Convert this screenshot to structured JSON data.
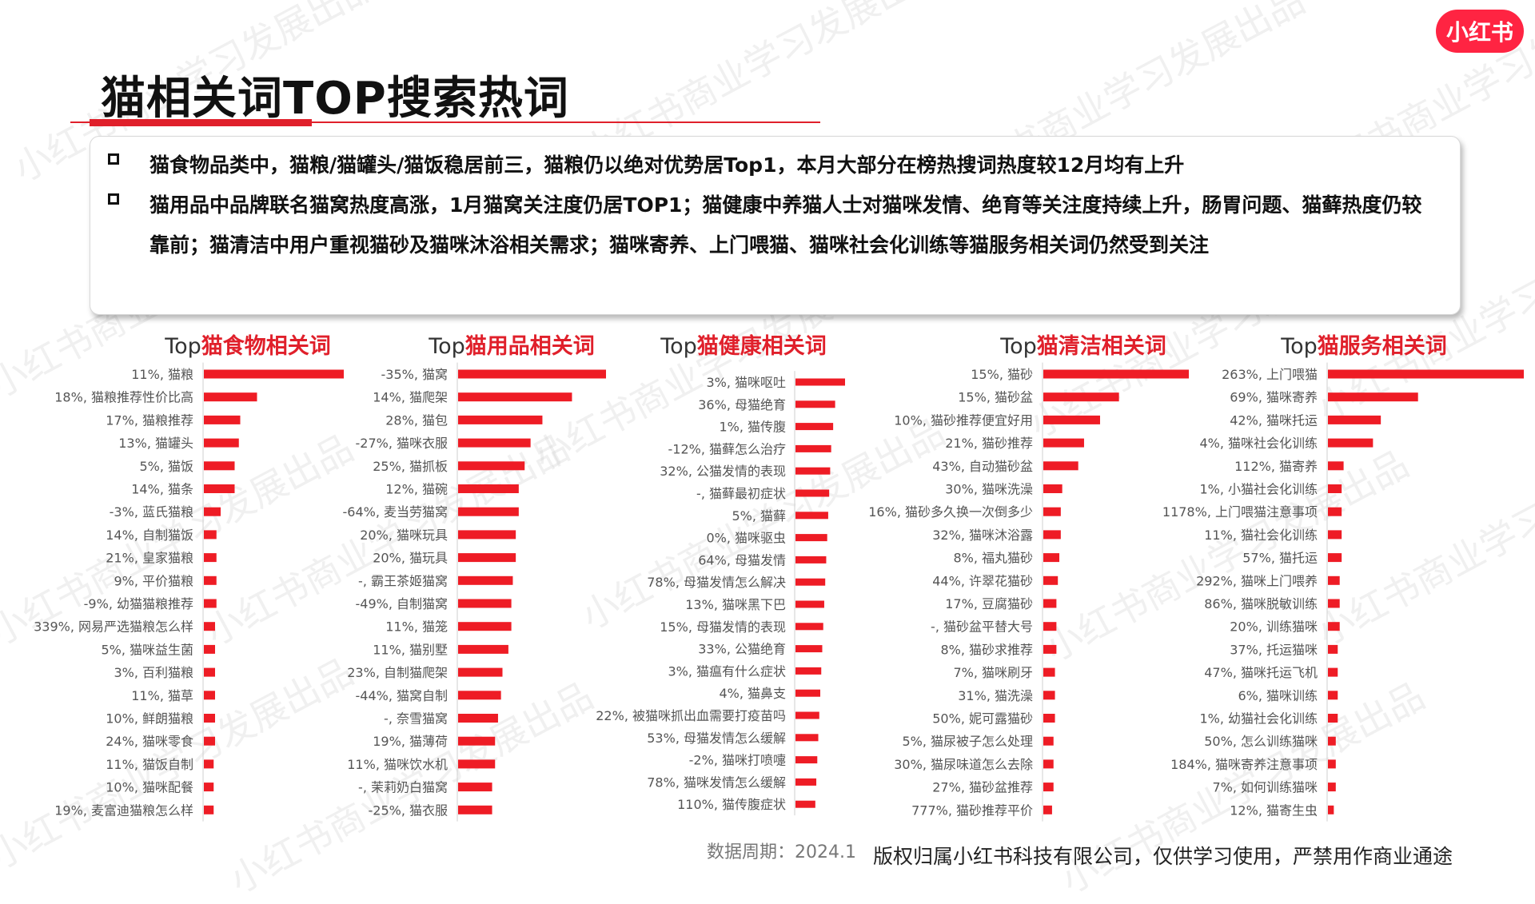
{
  "brand": {
    "logo_text": "小红书",
    "color": "#ff2442"
  },
  "watermark": "小红书商业学习发展出品",
  "page_title": "猫相关词TOP搜索热词",
  "summary": [
    "猫食物品类中，猫粮/猫罐头/猫饭稳居前三，猫粮仍以绝对优势居Top1，本月大部分在榜热搜词热度较12月均有上升",
    "猫用品中品牌联名猫窝热度高涨，1月猫窝关注度仍居TOP1；猫健康中养猫人士对猫咪发情、绝育等关注度持续上升，肠胃问题、猫藓热度仍较靠前；猫清洁中用户重视猫砂及猫咪沐浴相关需求；猫咪寄养、上门喂猫、猫咪社会化训练等猫服务相关词仍然受到关注"
  ],
  "footer": {
    "period": "数据周期：2024.1",
    "copyright": "版权归属小红书科技有限公司，仅供学习使用，严禁用作商业通途"
  },
  "colors": {
    "accent": "#e0202b",
    "bar": "#ee1c25",
    "text": "#111111",
    "label": "#555555"
  },
  "chart_data": [
    {
      "type": "bar",
      "orientation": "horizontal",
      "title_prefix": "Top",
      "title": "猫食物相关词",
      "categories": [
        "11%, 猫粮",
        "18%, 猫粮推荐性价比高",
        "17%, 猫粮推荐",
        "13%, 猫罐头",
        "5%, 猫饭",
        "14%, 猫条",
        "-3%, 蓝氏猫粮",
        "14%, 自制猫饭",
        "21%, 皇家猫粮",
        "9%, 平价猫粮",
        "-9%, 幼猫猫粮推荐",
        "339%, 网易严选猫粮怎么样",
        "5%, 猫咪益生菌",
        "3%, 百利猫粮",
        "11%, 猫草",
        "10%, 鲜朗猫粮",
        "24%, 猫咪零食",
        "11%, 猫饭自制",
        "10%, 猫咪配餐",
        "19%, 麦富迪猫粮怎么样"
      ],
      "values": [
        100,
        38,
        26,
        25,
        22,
        22,
        12,
        9,
        9,
        9,
        9,
        8,
        8,
        8,
        8,
        8,
        8,
        7,
        7,
        7
      ]
    },
    {
      "type": "bar",
      "orientation": "horizontal",
      "title_prefix": "Top",
      "title": "猫用品相关词",
      "categories": [
        "-35%, 猫窝",
        "14%, 猫爬架",
        "28%, 猫包",
        "-27%, 猫咪衣服",
        "25%, 猫抓板",
        "12%, 猫碗",
        "-64%, 麦当劳猫窝",
        "20%, 猫咪玩具",
        "20%, 猫玩具",
        "-, 霸王茶姬猫窝",
        "-49%, 自制猫窝",
        "11%, 猫笼",
        "11%, 猫别墅",
        "23%, 自制猫爬架",
        "-44%, 猫窝自制",
        "-, 奈雪猫窝",
        "19%, 猫薄荷",
        "11%, 猫咪饮水机",
        "-, 茉莉奶白猫窝",
        "-25%, 猫衣服"
      ],
      "values": [
        100,
        77,
        57,
        49,
        45,
        41,
        41,
        39,
        39,
        37,
        36,
        36,
        34,
        30,
        29,
        27,
        25,
        25,
        23,
        23
      ]
    },
    {
      "type": "bar",
      "orientation": "horizontal",
      "title_prefix": "Top",
      "title": "猫健康相关词",
      "categories": [
        "3%, 猫咪呕吐",
        "36%, 母猫绝育",
        "1%, 猫传腹",
        "-12%, 猫藓怎么治疗",
        "32%, 公猫发情的表现",
        "-, 猫藓最初症状",
        "5%, 猫藓",
        "0%, 猫咪驱虫",
        "64%, 母猫发情",
        "78%, 母猫发情怎么解决",
        "13%, 猫咪黑下巴",
        "15%, 母猫发情的表现",
        "33%, 公猫绝育",
        "3%, 猫瘟有什么症状",
        "4%, 猫鼻支",
        "22%, 被猫咪抓出血需要打疫苗吗",
        "53%, 母猫发情怎么缓解",
        "-2%, 猫咪打喷嚏",
        "78%, 猫咪发情怎么缓解",
        "110%, 猫传腹症状"
      ],
      "values": [
        100,
        80,
        76,
        72,
        70,
        68,
        66,
        64,
        62,
        60,
        58,
        56,
        54,
        52,
        50,
        48,
        46,
        44,
        42,
        40
      ]
    },
    {
      "type": "bar",
      "orientation": "horizontal",
      "title_prefix": "Top",
      "title": "猫清洁相关词",
      "categories": [
        "15%, 猫砂",
        "15%, 猫砂盆",
        "10%, 猫砂推荐便宜好用",
        "21%, 猫砂推荐",
        "43%, 自动猫砂盆",
        "30%, 猫咪洗澡",
        "16%, 猫砂多久换一次倒多少",
        "32%, 猫咪沐浴露",
        "8%, 福丸猫砂",
        "44%, 许翠花猫砂",
        "17%, 豆腐猫砂",
        "-, 猫砂盆平替大号",
        "8%, 猫砂求推荐",
        "7%, 猫咪刷牙",
        "31%, 猫洗澡",
        "50%, 妮可露猫砂",
        "5%, 猫尿被子怎么处理",
        "30%, 猫尿味道怎么去除",
        "27%, 猫砂盆推荐",
        "777%, 猫砂推荐平价"
      ],
      "values": [
        100,
        52,
        39,
        28,
        24,
        13,
        12,
        12,
        11,
        10,
        9,
        9,
        9,
        8,
        8,
        8,
        7,
        7,
        7,
        6
      ]
    },
    {
      "type": "bar",
      "orientation": "horizontal",
      "title_prefix": "Top",
      "title": "猫服务相关词",
      "categories": [
        "263%, 上门喂猫",
        "69%, 猫咪寄养",
        "42%, 猫咪托运",
        "4%, 猫咪社会化训练",
        "112%, 猫寄养",
        "1%, 小猫社会化训练",
        "1178%, 上门喂猫注意事项",
        "11%, 猫社会化训练",
        "57%, 猫托运",
        "292%, 猫咪上门喂养",
        "86%, 猫咪脱敏训练",
        "20%, 训练猫咪",
        "37%, 托运猫咪",
        "47%, 猫咪托运飞机",
        "6%, 猫咪训练",
        "1%, 幼猫社会化训练",
        "50%, 怎么训练猫咪",
        "184%, 猫咪寄养注意事项",
        "7%, 如何训练猫咪",
        "12%, 猫寄生虫"
      ],
      "values": [
        100,
        46,
        27,
        23,
        8,
        7,
        7,
        7,
        7,
        6,
        6,
        6,
        5,
        5,
        5,
        5,
        4,
        4,
        4,
        3
      ]
    }
  ]
}
